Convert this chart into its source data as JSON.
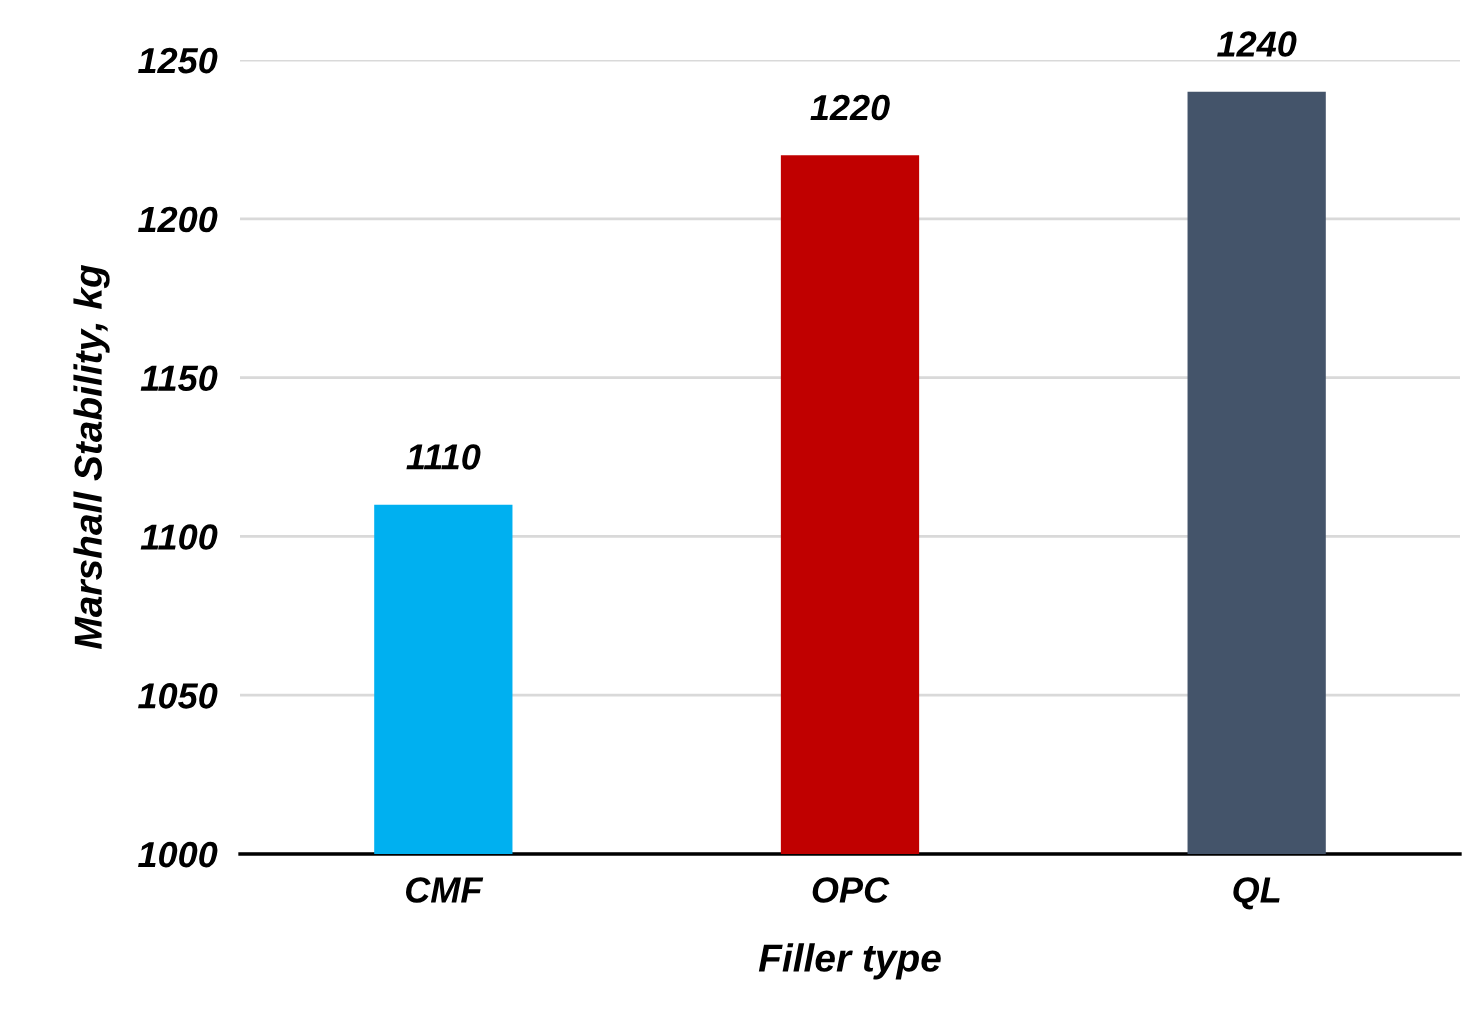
{
  "chart_data": {
    "type": "bar",
    "xlabel": "Filler type",
    "ylabel": "Marshall Stability, kg",
    "categories": [
      "CMF",
      "OPC",
      "QL"
    ],
    "values": [
      1110,
      1220,
      1240
    ],
    "colors": [
      "#00b0f0",
      "#c00000",
      "#44546a"
    ],
    "ylim": [
      1000,
      1250
    ],
    "yticks": [
      1000,
      1050,
      1100,
      1150,
      1200,
      1250
    ],
    "grid": "y",
    "data_labels": true
  }
}
